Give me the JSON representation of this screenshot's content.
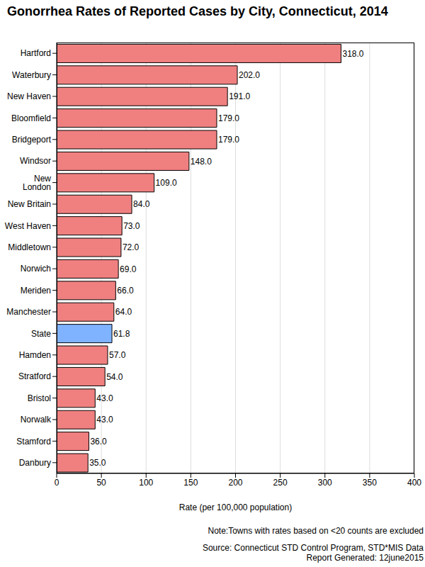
{
  "chart_data": {
    "type": "bar",
    "title": "Gonorrhea Rates of Reported Cases by City, Connecticut, 2014",
    "x_label": "Rate (per 100,000 population)",
    "categories": [
      "Hartford",
      "Waterbury",
      "New Haven",
      "Bloomfield",
      "Bridgeport",
      "Windsor",
      "New London",
      "New Britain",
      "West Haven",
      "Middletown",
      "Norwich",
      "Meriden",
      "Manchester",
      "State",
      "Hamden",
      "Stratford",
      "Bristol",
      "Norwalk",
      "Stamford",
      "Danbury"
    ],
    "values": [
      318,
      202,
      191,
      179,
      179,
      148,
      109,
      84,
      73,
      72,
      69,
      66,
      64,
      61.8,
      57,
      54,
      43,
      43,
      36,
      35
    ],
    "value_labels": [
      "318.0",
      "202.0",
      "191.0",
      "179.0",
      "179.0",
      "148.0",
      "109.0",
      "84.0",
      "73.0",
      "72.0",
      "69.0",
      "66.0",
      "64.0",
      "61.8",
      "57.0",
      "54.0",
      "43.0",
      "43.0",
      "36.0",
      "35.0"
    ],
    "colors": [
      "#f08080",
      "#f08080",
      "#f08080",
      "#f08080",
      "#f08080",
      "#f08080",
      "#f08080",
      "#f08080",
      "#f08080",
      "#f08080",
      "#f08080",
      "#f08080",
      "#f08080",
      "#80b3ff",
      "#f08080",
      "#f08080",
      "#f08080",
      "#f08080",
      "#f08080",
      "#f08080"
    ],
    "xlim": [
      0,
      400
    ],
    "xticks": [
      0,
      50,
      100,
      150,
      200,
      250,
      300,
      350,
      400
    ],
    "grid": true,
    "orientation": "horizontal",
    "data_labels": true,
    "annotations": [
      "Note:Towns with rates based on <20 counts are excluded",
      "Source: Connecticut STD Control Program, STD*MIS Data",
      "Report Generated: 12june2015"
    ]
  }
}
